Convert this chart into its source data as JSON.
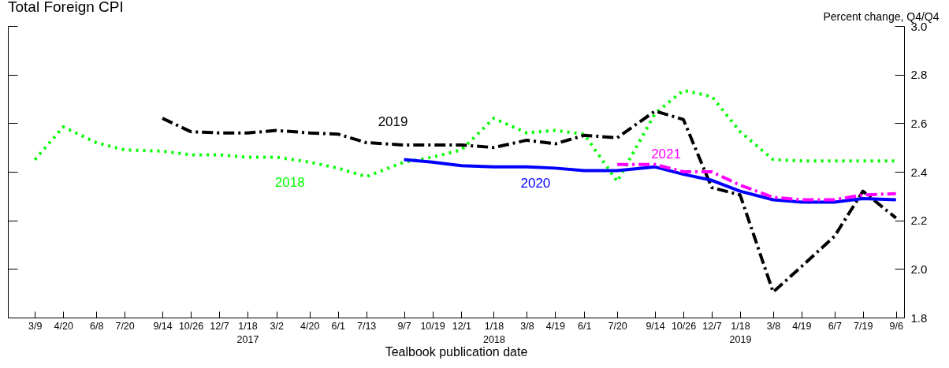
{
  "chart_data": {
    "type": "line",
    "title": "Total Foreign CPI",
    "xlabel": "Tealbook publication date",
    "ylabel": "Percent change, Q4/Q4",
    "x": [
      "2016-03-09",
      "2016-04-20",
      "2016-06-08",
      "2016-07-20",
      "2016-09-14",
      "2016-10-26",
      "2016-12-07",
      "2017-01-18",
      "2017-03-02",
      "2017-04-20",
      "2017-06-01",
      "2017-07-13",
      "2017-09-07",
      "2017-10-19",
      "2017-12-01",
      "2018-01-18",
      "2018-03-08",
      "2018-04-19",
      "2018-06-01",
      "2018-07-20",
      "2018-09-14",
      "2018-10-26",
      "2018-12-07",
      "2019-01-18",
      "2019-03-08",
      "2019-04-19",
      "2019-06-07",
      "2019-07-19",
      "2019-09-06"
    ],
    "xlim": [
      "2016-01-29",
      "2019-09-18"
    ],
    "xticks": [
      {
        "value": "2016-03-09",
        "label": "3/9"
      },
      {
        "value": "2016-04-20",
        "label": "4/20"
      },
      {
        "value": "2016-06-08",
        "label": "6/8"
      },
      {
        "value": "2016-07-20",
        "label": "7/20"
      },
      {
        "value": "2016-09-14",
        "label": "9/14"
      },
      {
        "value": "2016-10-26",
        "label": "10/26"
      },
      {
        "value": "2016-12-07",
        "label": "12/7"
      },
      {
        "value": "2017-01-18",
        "label": "1/18\n2017"
      },
      {
        "value": "2017-03-02",
        "label": "3/2"
      },
      {
        "value": "2017-04-20",
        "label": "4/20"
      },
      {
        "value": "2017-06-01",
        "label": "6/1"
      },
      {
        "value": "2017-07-13",
        "label": "7/13"
      },
      {
        "value": "2017-09-07",
        "label": "9/7"
      },
      {
        "value": "2017-10-19",
        "label": "10/19"
      },
      {
        "value": "2017-12-01",
        "label": "12/1"
      },
      {
        "value": "2018-01-18",
        "label": "1/18\n2018"
      },
      {
        "value": "2018-03-08",
        "label": "3/8"
      },
      {
        "value": "2018-04-19",
        "label": "4/19"
      },
      {
        "value": "2018-06-01",
        "label": "6/1"
      },
      {
        "value": "2018-07-20",
        "label": "7/20"
      },
      {
        "value": "2018-09-14",
        "label": "9/14"
      },
      {
        "value": "2018-10-26",
        "label": "10/26"
      },
      {
        "value": "2018-12-07",
        "label": "12/7"
      },
      {
        "value": "2019-01-18",
        "label": "1/18\n2019"
      },
      {
        "value": "2019-03-08",
        "label": "3/8"
      },
      {
        "value": "2019-04-19",
        "label": "4/19"
      },
      {
        "value": "2019-06-07",
        "label": "6/7"
      },
      {
        "value": "2019-07-19",
        "label": "7/19"
      },
      {
        "value": "2019-09-06",
        "label": "9/6"
      }
    ],
    "ylim": [
      1.8,
      3.0
    ],
    "yticks": [
      1.8,
      {
        "value": 2,
        "label": "2.0"
      },
      2.2,
      2.4,
      2.6,
      2.8,
      {
        "value": 3,
        "label": "3.0"
      }
    ],
    "grid": false,
    "series": [
      {
        "name": "2018",
        "color": "#00ff00",
        "line_style": "dotted",
        "values": [
          2.45,
          2.585,
          2.52,
          2.49,
          2.485,
          2.47,
          2.47,
          2.46,
          2.46,
          2.44,
          2.415,
          2.38,
          2.44,
          2.46,
          2.49,
          2.62,
          2.56,
          2.57,
          2.555,
          2.36,
          2.64,
          2.735,
          2.71,
          2.565,
          2.45,
          2.445,
          2.445,
          2.445,
          2.445
        ]
      },
      {
        "name": "2019",
        "color": "#000000",
        "line_style": "dashed",
        "values": [
          null,
          null,
          null,
          null,
          2.62,
          2.565,
          2.56,
          2.56,
          2.57,
          2.56,
          2.555,
          2.52,
          2.51,
          2.51,
          2.51,
          2.5,
          2.53,
          2.515,
          2.55,
          2.54,
          2.65,
          2.615,
          2.335,
          2.305,
          1.905,
          2.01,
          2.135,
          2.32,
          2.21
        ]
      },
      {
        "name": "2020",
        "color": "#0000ff",
        "line_style": "solid",
        "values": [
          null,
          null,
          null,
          null,
          null,
          null,
          null,
          null,
          null,
          null,
          null,
          null,
          2.45,
          2.44,
          2.425,
          2.42,
          2.42,
          2.415,
          2.405,
          2.405,
          2.42,
          2.39,
          2.365,
          2.32,
          2.285,
          2.275,
          2.275,
          2.29,
          2.285
        ]
      },
      {
        "name": "2021",
        "color": "#ff00ff",
        "line_style": "dashed",
        "values": [
          null,
          null,
          null,
          null,
          null,
          null,
          null,
          null,
          null,
          null,
          null,
          null,
          null,
          null,
          null,
          null,
          null,
          null,
          null,
          2.43,
          2.43,
          2.4,
          2.4,
          2.345,
          2.295,
          2.285,
          2.285,
          2.305,
          2.31
        ]
      }
    ]
  }
}
